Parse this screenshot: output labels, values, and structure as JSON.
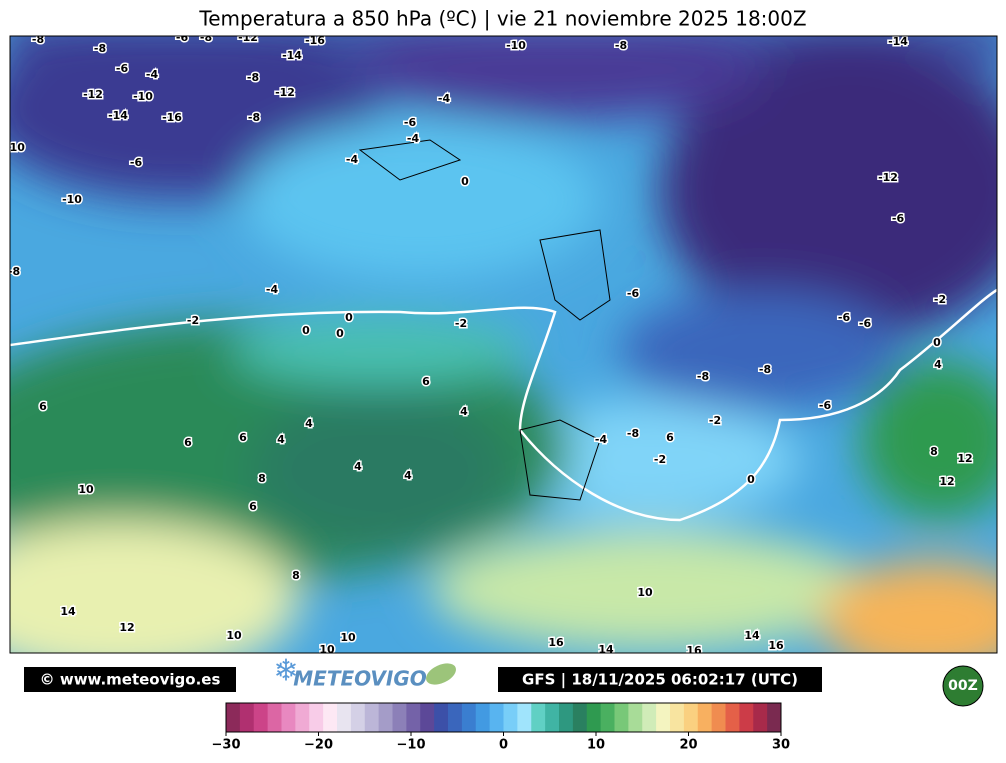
{
  "title": "Temperatura a 850 hPa (ºC) | vie 21 noviembre 2025 18:00Z",
  "credit": "© www.meteovigo.es",
  "logo": "METEOVIGO",
  "model_run": "GFS | 18/11/2025 06:02:17 (UTC)",
  "run_badge": "00Z",
  "contour_labels": [
    -8,
    -8,
    -6,
    -8,
    -12,
    -16,
    -14,
    -10,
    -8,
    -14,
    -6,
    -4,
    -8,
    -12,
    -10,
    -12,
    -4,
    -14,
    -16,
    -8,
    -6,
    -4,
    -10,
    -6,
    -4,
    0,
    -12,
    -10,
    -6,
    -8,
    -4,
    -6,
    -2,
    -2,
    0,
    0,
    0,
    -2,
    -6,
    -6,
    0,
    4,
    6,
    -8,
    -8,
    6,
    4,
    -6,
    -2,
    6,
    6,
    4,
    4,
    -8,
    -4,
    6,
    -2,
    4,
    4,
    8,
    0,
    8,
    12,
    12,
    10,
    6,
    8,
    10,
    14,
    12,
    10,
    16,
    14,
    16,
    14,
    16,
    10,
    10
  ],
  "colorbar": {
    "lim": [
      -30,
      30
    ],
    "ticks": [
      {
        "value": -30,
        "label": "−30"
      },
      {
        "value": -20,
        "label": "−20"
      },
      {
        "value": -10,
        "label": "−10"
      },
      0,
      10,
      20,
      30
    ],
    "colors": [
      "#8c2a5a",
      "#b03070",
      "#cc4488",
      "#dc66a4",
      "#e888c0",
      "#f0aad4",
      "#f8cce8",
      "#fde8f4",
      "#e8e4f0",
      "#d4d0e6",
      "#bcb6d8",
      "#a49cc8",
      "#8c80b8",
      "#7462a8",
      "#5c4898",
      "#3c50a8",
      "#3a66bc",
      "#3a7ed0",
      "#429ae2",
      "#58b4f0",
      "#78cef8",
      "#a0e4fc",
      "#60d0c4",
      "#40b4a4",
      "#2e9880",
      "#2a8060",
      "#2f9a50",
      "#4ab060",
      "#78c878",
      "#a8dc98",
      "#d0ecb8",
      "#f4f4c0",
      "#f8e4a0",
      "#fad080",
      "#f8b060",
      "#f08c50",
      "#e46048",
      "#cc3c48",
      "#a82a4a",
      "#7a2a50"
    ]
  }
}
